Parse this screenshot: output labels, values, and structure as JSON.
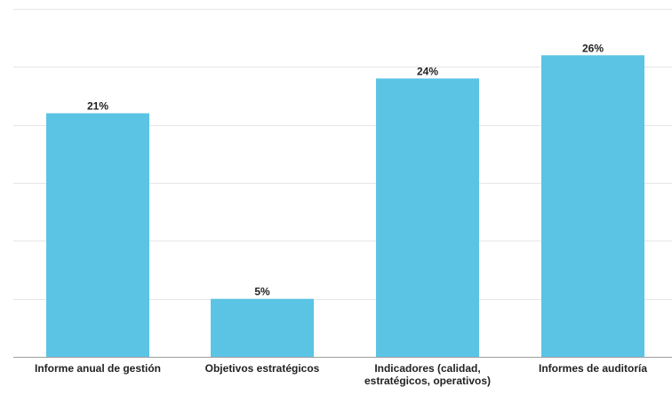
{
  "chart_data": {
    "type": "bar",
    "categories": [
      "Informe anual de gestión",
      "Objetivos estratégicos",
      "Indicadores (calidad, estratégicos, operativos)",
      "Informes de auditoría"
    ],
    "category_label_lines": [
      [
        "Informe anual de gestión"
      ],
      [
        "Objetivos estratégicos"
      ],
      [
        "Indicadores (calidad,",
        "estratégicos, operativos)"
      ],
      [
        "Informes de auditoría"
      ]
    ],
    "values": [
      21,
      5,
      24,
      26
    ],
    "data_labels": [
      "21%",
      "5%",
      "24%",
      "26%"
    ],
    "ylim": [
      0,
      30
    ],
    "grid": true,
    "colors": {
      "bar": "#5bc4e5",
      "grid": "#e6e6e6",
      "text": "#222222"
    }
  }
}
